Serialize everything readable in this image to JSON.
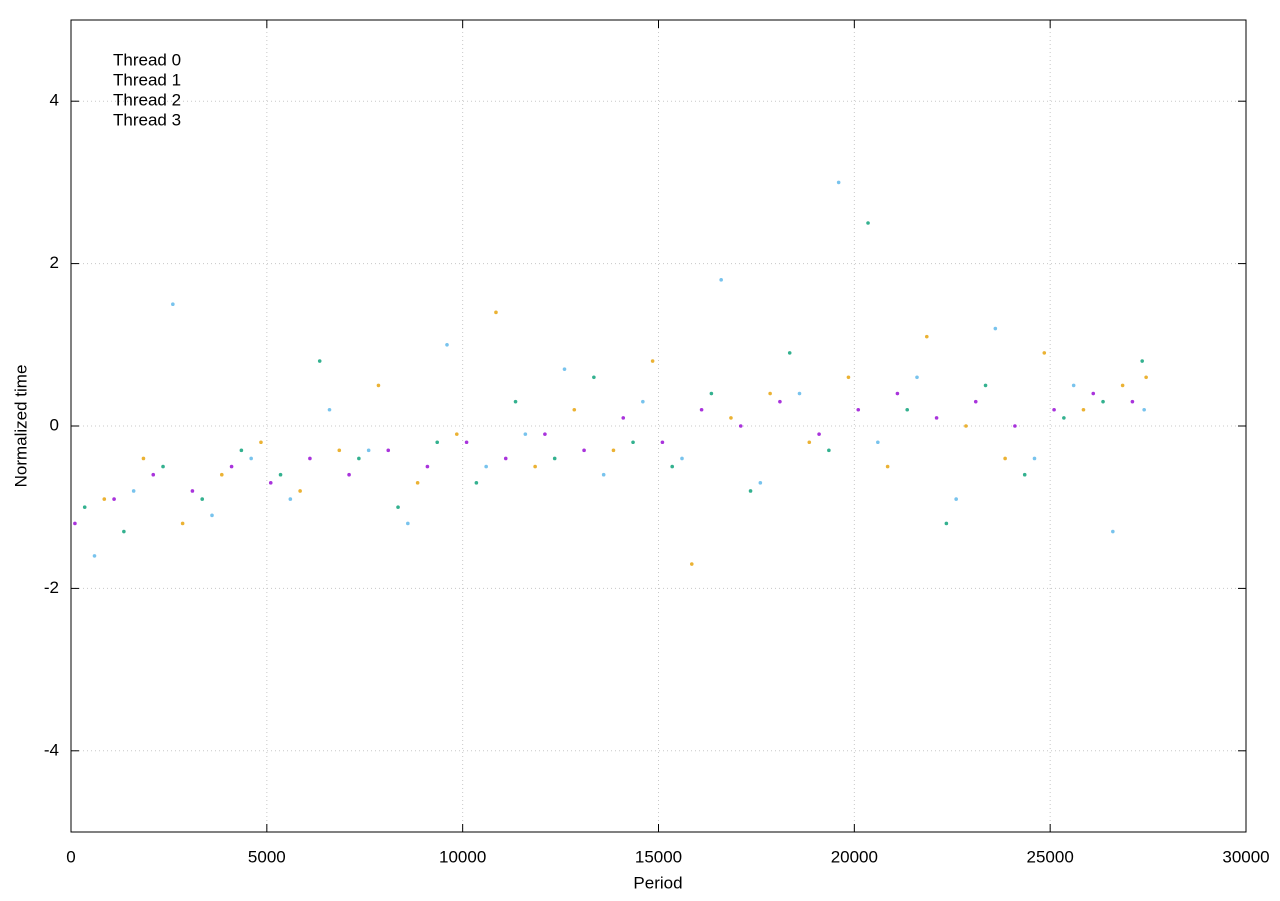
{
  "chart_data": {
    "type": "scatter",
    "xlabel": "Period",
    "ylabel": "Normalized time",
    "xlim": [
      0,
      30000
    ],
    "xticks": [
      0,
      5000,
      10000,
      15000,
      20000,
      25000,
      30000
    ],
    "ylim": [
      -5,
      5
    ],
    "yticks": [
      -4,
      -2,
      0,
      2,
      4
    ],
    "grid": true,
    "legend": "top-left",
    "series": [
      {
        "name": "Thread 0",
        "color": "#9400d3",
        "x": [
          100,
          1100,
          2100,
          3100,
          4100,
          5100,
          6100,
          7100,
          8100,
          9100,
          10100,
          11100,
          12100,
          13100,
          14100,
          15100,
          16100,
          17100,
          18100,
          19100,
          20100,
          21100,
          22100,
          23100,
          24100,
          25100,
          26100,
          27100
        ],
        "values": [
          -1.2,
          -0.9,
          -0.6,
          -0.8,
          -0.5,
          -0.7,
          -0.4,
          -0.6,
          -0.3,
          -0.5,
          -0.2,
          -0.4,
          -0.1,
          -0.3,
          0.1,
          -0.2,
          0.2,
          0.0,
          0.3,
          -0.1,
          0.2,
          0.4,
          0.1,
          0.3,
          0.0,
          0.2,
          0.4,
          0.3
        ]
      },
      {
        "name": "Thread 1",
        "color": "#009e73",
        "x": [
          350,
          1350,
          2350,
          3350,
          4350,
          5350,
          6350,
          7350,
          8350,
          9350,
          10350,
          11350,
          12350,
          13350,
          14350,
          15350,
          16350,
          17350,
          18350,
          19350,
          20350,
          21350,
          22350,
          23350,
          24350,
          25350,
          26350,
          27350
        ],
        "values": [
          -1.0,
          -1.3,
          -0.5,
          -0.9,
          -0.3,
          -0.6,
          0.8,
          -0.4,
          -1.0,
          -0.2,
          -0.7,
          0.3,
          -0.4,
          0.6,
          -0.2,
          -0.5,
          0.4,
          -0.8,
          0.9,
          -0.3,
          2.5,
          0.2,
          -1.2,
          0.5,
          -0.6,
          0.1,
          0.3,
          0.8
        ]
      },
      {
        "name": "Thread 2",
        "color": "#56b4e9",
        "x": [
          600,
          1600,
          2600,
          3600,
          4600,
          5600,
          6600,
          7600,
          8600,
          9600,
          10600,
          11600,
          12600,
          13600,
          14600,
          15600,
          16600,
          17600,
          18600,
          19600,
          20600,
          21600,
          22600,
          23600,
          24600,
          25600,
          26600,
          27400
        ],
        "values": [
          -1.6,
          -0.8,
          1.5,
          -1.1,
          -0.4,
          -0.9,
          0.2,
          -0.3,
          -1.2,
          1.0,
          -0.5,
          -0.1,
          0.7,
          -0.6,
          0.3,
          -0.4,
          1.8,
          -0.7,
          0.4,
          3.0,
          -0.2,
          0.6,
          -0.9,
          1.2,
          -0.4,
          0.5,
          -1.3,
          0.2
        ]
      },
      {
        "name": "Thread 3",
        "color": "#e69f00",
        "x": [
          850,
          1850,
          2850,
          3850,
          4850,
          5850,
          6850,
          7850,
          8850,
          9850,
          10850,
          11850,
          12850,
          13850,
          14850,
          15850,
          16850,
          17850,
          18850,
          19850,
          20850,
          21850,
          22850,
          23850,
          24850,
          25850,
          26850,
          27450
        ],
        "values": [
          -0.9,
          -0.4,
          -1.2,
          -0.6,
          -0.2,
          -0.8,
          -0.3,
          0.5,
          -0.7,
          -0.1,
          1.4,
          -0.5,
          0.2,
          -0.3,
          0.8,
          -1.7,
          0.1,
          0.4,
          -0.2,
          0.6,
          -0.5,
          1.1,
          0.0,
          -0.4,
          0.9,
          0.2,
          0.5,
          0.6
        ]
      }
    ]
  }
}
